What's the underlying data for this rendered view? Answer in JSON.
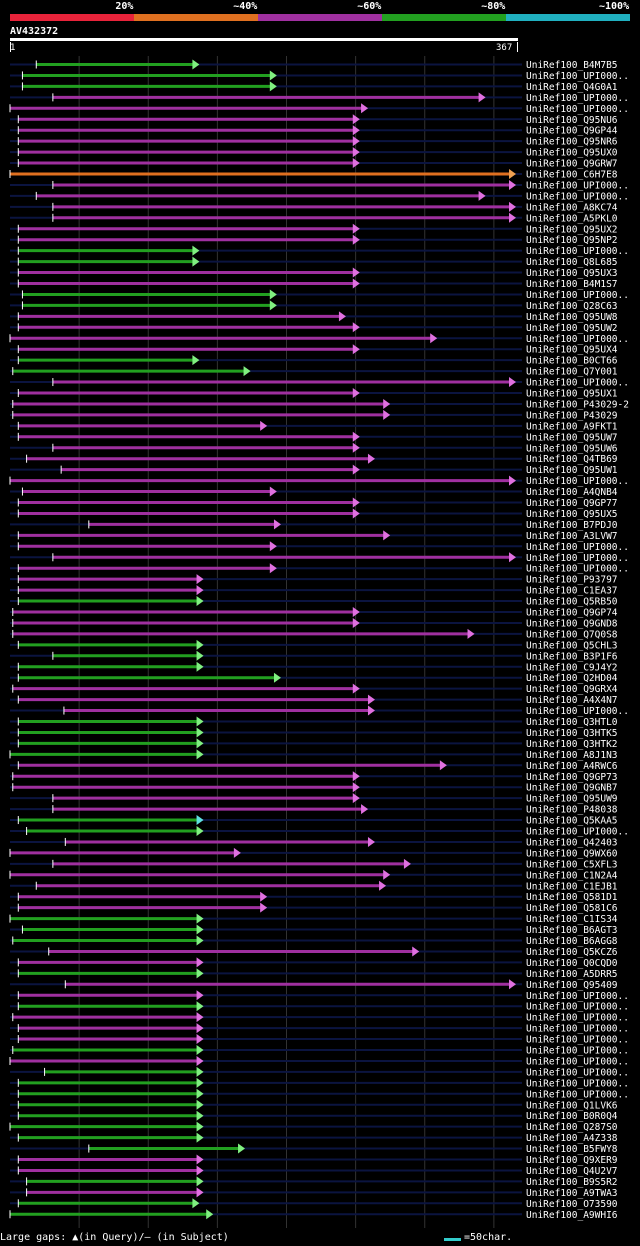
{
  "legend": {
    "labels": [
      "20%",
      "~40%",
      "~60%",
      "~80%",
      "~100%"
    ],
    "colors": [
      "#e8233a",
      "#e07020",
      "#a030a0",
      "#22a020",
      "#20b0c0"
    ]
  },
  "query": {
    "id": "AV432372",
    "start": "1",
    "end": "367"
  },
  "chart_data": {
    "type": "alignment-map",
    "query_length": 367,
    "hits": [
      {
        "name": "UniRef100_B4M7B5",
        "start": 20,
        "end": 138,
        "color": "green"
      },
      {
        "name": "UniRef100_UPI000..",
        "start": 10,
        "end": 194,
        "color": "green"
      },
      {
        "name": "UniRef100_Q4G0A1",
        "start": 10,
        "end": 194,
        "color": "green"
      },
      {
        "name": "UniRef100_UPI000..",
        "start": 32,
        "end": 345,
        "color": "purple"
      },
      {
        "name": "UniRef100_UPI000..",
        "start": 1,
        "end": 260,
        "color": "purple"
      },
      {
        "name": "UniRef100_Q95NU6",
        "start": 7,
        "end": 254,
        "color": "purple"
      },
      {
        "name": "UniRef100_Q9GP44",
        "start": 7,
        "end": 254,
        "color": "purple"
      },
      {
        "name": "UniRef100_Q95NR6",
        "start": 7,
        "end": 254,
        "color": "purple"
      },
      {
        "name": "UniRef100_Q95UX0",
        "start": 7,
        "end": 254,
        "color": "purple"
      },
      {
        "name": "UniRef100_Q9GRW7",
        "start": 7,
        "end": 254,
        "color": "purple"
      },
      {
        "name": "UniRef100_C6H7E8",
        "start": 1,
        "end": 367,
        "color": "orange"
      },
      {
        "name": "UniRef100_UPI000..",
        "start": 32,
        "end": 367,
        "color": "purple"
      },
      {
        "name": "UniRef100_UPI000..",
        "start": 20,
        "end": 345,
        "color": "purple"
      },
      {
        "name": "UniRef100_A8KC74",
        "start": 32,
        "end": 367,
        "color": "purple"
      },
      {
        "name": "UniRef100_A5PKL0",
        "start": 32,
        "end": 367,
        "color": "purple"
      },
      {
        "name": "UniRef100_Q95UX2",
        "start": 7,
        "end": 254,
        "color": "purple"
      },
      {
        "name": "UniRef100_Q95NP2",
        "start": 7,
        "end": 254,
        "color": "purple"
      },
      {
        "name": "UniRef100_UPI000..",
        "start": 7,
        "end": 138,
        "color": "green"
      },
      {
        "name": "UniRef100_Q8L685",
        "start": 7,
        "end": 138,
        "color": "green"
      },
      {
        "name": "UniRef100_Q95UX3",
        "start": 7,
        "end": 254,
        "color": "purple"
      },
      {
        "name": "UniRef100_B4M1S7",
        "start": 7,
        "end": 254,
        "color": "purple"
      },
      {
        "name": "UniRef100_UPI000..",
        "start": 10,
        "end": 194,
        "color": "green"
      },
      {
        "name": "UniRef100_Q28C63",
        "start": 10,
        "end": 194,
        "color": "green"
      },
      {
        "name": "UniRef100_Q95UW8",
        "start": 7,
        "end": 244,
        "color": "purple"
      },
      {
        "name": "UniRef100_Q95UW2",
        "start": 7,
        "end": 254,
        "color": "purple"
      },
      {
        "name": "UniRef100_UPI000..",
        "start": 1,
        "end": 310,
        "color": "purple"
      },
      {
        "name": "UniRef100_Q95UX4",
        "start": 7,
        "end": 254,
        "color": "purple"
      },
      {
        "name": "UniRef100_B0CT66",
        "start": 7,
        "end": 138,
        "color": "green"
      },
      {
        "name": "UniRef100_Q7Y001",
        "start": 3,
        "end": 175,
        "color": "green"
      },
      {
        "name": "UniRef100_UPI000..",
        "start": 32,
        "end": 367,
        "color": "purple"
      },
      {
        "name": "UniRef100_Q95UX1",
        "start": 7,
        "end": 254,
        "color": "purple"
      },
      {
        "name": "UniRef100_P43029-2",
        "start": 3,
        "end": 276,
        "color": "purple"
      },
      {
        "name": "UniRef100_P43029",
        "start": 3,
        "end": 276,
        "color": "purple"
      },
      {
        "name": "UniRef100_A9FKT1",
        "start": 7,
        "end": 187,
        "color": "purple"
      },
      {
        "name": "UniRef100_Q95UW7",
        "start": 7,
        "end": 254,
        "color": "purple"
      },
      {
        "name": "UniRef100_Q95UW6",
        "start": 32,
        "end": 254,
        "color": "purple"
      },
      {
        "name": "UniRef100_Q4TB69",
        "start": 13,
        "end": 265,
        "color": "purple"
      },
      {
        "name": "UniRef100_Q95UW1",
        "start": 38,
        "end": 254,
        "color": "purple"
      },
      {
        "name": "UniRef100_UPI000..",
        "start": 1,
        "end": 367,
        "color": "purple"
      },
      {
        "name": "UniRef100_A4QNB4",
        "start": 10,
        "end": 194,
        "color": "purple"
      },
      {
        "name": "UniRef100_Q9GP77",
        "start": 7,
        "end": 254,
        "color": "purple"
      },
      {
        "name": "UniRef100_Q95UX5",
        "start": 7,
        "end": 254,
        "color": "purple"
      },
      {
        "name": "UniRef100_B7PDJ0",
        "start": 58,
        "end": 197,
        "color": "purple"
      },
      {
        "name": "UniRef100_A3LVW7",
        "start": 7,
        "end": 276,
        "color": "purple"
      },
      {
        "name": "UniRef100_UPI000..",
        "start": 7,
        "end": 194,
        "color": "purple"
      },
      {
        "name": "UniRef100_UPI000..",
        "start": 32,
        "end": 367,
        "color": "purple"
      },
      {
        "name": "UniRef100_UPI000..",
        "start": 7,
        "end": 194,
        "color": "purple"
      },
      {
        "name": "UniRef100_P93797",
        "start": 7,
        "end": 141,
        "color": "purple"
      },
      {
        "name": "UniRef100_C1EA37",
        "start": 7,
        "end": 141,
        "color": "purple"
      },
      {
        "name": "UniRef100_Q5RB50",
        "start": 7,
        "end": 141,
        "color": "green"
      },
      {
        "name": "UniRef100_Q9GP74",
        "start": 3,
        "end": 254,
        "color": "purple"
      },
      {
        "name": "UniRef100_Q9GND8",
        "start": 3,
        "end": 254,
        "color": "purple"
      },
      {
        "name": "UniRef100_Q7Q0S8",
        "start": 3,
        "end": 337,
        "color": "purple"
      },
      {
        "name": "UniRef100_Q5CHL3",
        "start": 7,
        "end": 141,
        "color": "green"
      },
      {
        "name": "UniRef100_B3P1F6",
        "start": 32,
        "end": 141,
        "color": "green"
      },
      {
        "name": "UniRef100_C9J4Y2",
        "start": 7,
        "end": 141,
        "color": "green"
      },
      {
        "name": "UniRef100_Q2HD04",
        "start": 7,
        "end": 197,
        "color": "green"
      },
      {
        "name": "UniRef100_Q9GRX4",
        "start": 3,
        "end": 254,
        "color": "purple"
      },
      {
        "name": "UniRef100_A4X4N7",
        "start": 7,
        "end": 265,
        "color": "purple"
      },
      {
        "name": "UniRef100_UPI000..",
        "start": 40,
        "end": 265,
        "color": "purple"
      },
      {
        "name": "UniRef100_Q3HTL0",
        "start": 7,
        "end": 141,
        "color": "green"
      },
      {
        "name": "UniRef100_Q3HTK5",
        "start": 7,
        "end": 141,
        "color": "green"
      },
      {
        "name": "UniRef100_Q3HTK2",
        "start": 7,
        "end": 141,
        "color": "green"
      },
      {
        "name": "UniRef100_A8J1N3",
        "start": 1,
        "end": 141,
        "color": "green"
      },
      {
        "name": "UniRef100_A4RWC6",
        "start": 7,
        "end": 317,
        "color": "purple"
      },
      {
        "name": "UniRef100_Q9GP73",
        "start": 3,
        "end": 254,
        "color": "purple"
      },
      {
        "name": "UniRef100_Q9GNB7",
        "start": 3,
        "end": 254,
        "color": "purple"
      },
      {
        "name": "UniRef100_Q95UW9",
        "start": 32,
        "end": 254,
        "color": "purple"
      },
      {
        "name": "UniRef100_P48038",
        "start": 32,
        "end": 260,
        "color": "purple"
      },
      {
        "name": "UniRef100_Q5KAA5",
        "start": 7,
        "end": 141,
        "color": "green-cyan"
      },
      {
        "name": "UniRef100_UPI000..",
        "start": 13,
        "end": 141,
        "color": "green"
      },
      {
        "name": "UniRef100_Q42403",
        "start": 41,
        "end": 265,
        "color": "purple"
      },
      {
        "name": "UniRef100_Q9WX60",
        "start": 1,
        "end": 168,
        "color": "purple"
      },
      {
        "name": "UniRef100_C5XFL3",
        "start": 32,
        "end": 291,
        "color": "purple"
      },
      {
        "name": "UniRef100_C1N2A4",
        "start": 1,
        "end": 276,
        "color": "purple"
      },
      {
        "name": "UniRef100_C1EJB1",
        "start": 20,
        "end": 273,
        "color": "purple"
      },
      {
        "name": "UniRef100_Q581D1",
        "start": 7,
        "end": 187,
        "color": "purple"
      },
      {
        "name": "UniRef100_Q581C6",
        "start": 7,
        "end": 187,
        "color": "purple"
      },
      {
        "name": "UniRef100_C1IS34",
        "start": 1,
        "end": 141,
        "color": "green"
      },
      {
        "name": "UniRef100_B6AGT3",
        "start": 10,
        "end": 141,
        "color": "green"
      },
      {
        "name": "UniRef100_B6AGG8",
        "start": 3,
        "end": 141,
        "color": "green"
      },
      {
        "name": "UniRef100_Q5KCZ6",
        "start": 29,
        "end": 297,
        "color": "purple"
      },
      {
        "name": "UniRef100_Q0CQD0",
        "start": 7,
        "end": 141,
        "color": "purple"
      },
      {
        "name": "UniRef100_A5DRR5",
        "start": 7,
        "end": 141,
        "color": "green"
      },
      {
        "name": "UniRef100_Q95409",
        "start": 41,
        "end": 367,
        "color": "purple"
      },
      {
        "name": "UniRef100_UPI000..",
        "start": 7,
        "end": 141,
        "color": "purple"
      },
      {
        "name": "UniRef100_UPI000..",
        "start": 7,
        "end": 141,
        "color": "green"
      },
      {
        "name": "UniRef100_UPI000..",
        "start": 3,
        "end": 141,
        "color": "purple"
      },
      {
        "name": "UniRef100_UPI000..",
        "start": 7,
        "end": 141,
        "color": "purple"
      },
      {
        "name": "UniRef100_UPI000..",
        "start": 7,
        "end": 141,
        "color": "purple"
      },
      {
        "name": "UniRef100_UPI000..",
        "start": 3,
        "end": 141,
        "color": "green"
      },
      {
        "name": "UniRef100_UPI000..",
        "start": 1,
        "end": 141,
        "color": "purple"
      },
      {
        "name": "UniRef100_UPI000..",
        "start": 26,
        "end": 141,
        "color": "green"
      },
      {
        "name": "UniRef100_UPI000..",
        "start": 7,
        "end": 141,
        "color": "green"
      },
      {
        "name": "UniRef100_UPI000..",
        "start": 7,
        "end": 141,
        "color": "green"
      },
      {
        "name": "UniRef100_Q1LVK6",
        "start": 7,
        "end": 141,
        "color": "green"
      },
      {
        "name": "UniRef100_B0R0Q4",
        "start": 7,
        "end": 141,
        "color": "green"
      },
      {
        "name": "UniRef100_Q287S0",
        "start": 1,
        "end": 141,
        "color": "green"
      },
      {
        "name": "UniRef100_A4Z338",
        "start": 7,
        "end": 141,
        "color": "green"
      },
      {
        "name": "UniRef100_B5FWY8",
        "start": 58,
        "end": 171,
        "color": "green"
      },
      {
        "name": "UniRef100_Q9XER9",
        "start": 7,
        "end": 141,
        "color": "purple"
      },
      {
        "name": "UniRef100_Q4U2V7",
        "start": 7,
        "end": 141,
        "color": "purple"
      },
      {
        "name": "UniRef100_B9S5R2",
        "start": 13,
        "end": 141,
        "color": "green"
      },
      {
        "name": "UniRef100_A9TWA3",
        "start": 13,
        "end": 141,
        "color": "purple"
      },
      {
        "name": "UniRef100_O73590",
        "start": 7,
        "end": 138,
        "color": "green"
      },
      {
        "name": "UniRef100_A9WHI6",
        "start": 1,
        "end": 148,
        "color": "green"
      }
    ]
  },
  "footer": {
    "text": "Large gaps: ▲(in Query)/– (in Subject)",
    "scale": "=50char."
  }
}
